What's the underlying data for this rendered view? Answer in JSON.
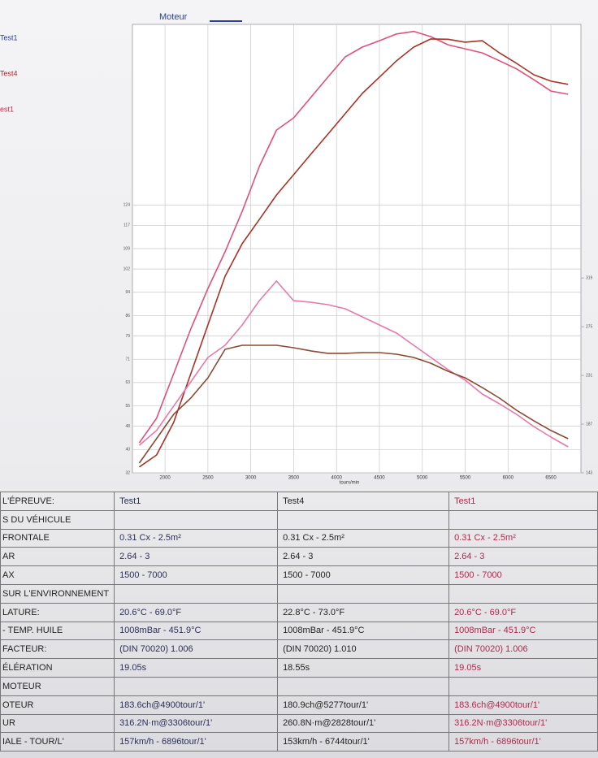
{
  "chart_data": {
    "type": "line",
    "title": "Moteur",
    "x_label": "tours/min",
    "legend": [
      {
        "text": "Test1",
        "color": "#2a3f8f"
      },
      {
        "text": "Test4",
        "color": "#b02030"
      },
      {
        "text": "est1",
        "color": "#c03050"
      }
    ],
    "x": [
      1700,
      1900,
      2100,
      2300,
      2500,
      2700,
      2900,
      3100,
      3300,
      3500,
      3700,
      3900,
      4100,
      4300,
      4500,
      4700,
      4900,
      5100,
      5300,
      5500,
      5700,
      5900,
      6100,
      6300,
      6500,
      6700
    ],
    "xlim": [
      1620,
      6850
    ],
    "xticks": [
      2000,
      2500,
      3000,
      3500,
      4000,
      4500,
      5000,
      5500,
      6000,
      6500
    ],
    "ylim": [
      32,
      186
    ],
    "yticks": [
      32,
      40,
      48,
      55,
      63,
      71,
      79,
      86,
      94,
      102,
      109,
      117,
      124
    ],
    "y2lim": [
      143,
      548
    ],
    "y2ticks": [
      143,
      187,
      231,
      275,
      319
    ],
    "grid": true,
    "series": [
      {
        "color": "#e0507a",
        "axis": "y",
        "values": [
          42.3,
          50.7,
          66.0,
          81.4,
          95.3,
          107.9,
          121.8,
          137.2,
          149.7,
          153.9,
          160.9,
          167.9,
          174.8,
          178.2,
          180.4,
          182.7,
          183.6,
          181.8,
          179.0,
          177.6,
          176.2,
          173.5,
          170.7,
          167.0,
          163.1,
          162.0
        ]
      },
      {
        "color": "#a83226",
        "axis": "y",
        "values": [
          34.0,
          38.1,
          49.3,
          66.0,
          82.8,
          99.5,
          110.7,
          119.0,
          127.4,
          134.4,
          141.4,
          148.3,
          155.3,
          162.3,
          167.9,
          173.5,
          178.2,
          181.0,
          180.9,
          179.9,
          180.4,
          176.2,
          172.6,
          168.7,
          166.5,
          165.4
        ]
      },
      {
        "color": "#e879a8",
        "axis": "y2",
        "values": [
          167.9,
          181.2,
          203.2,
          225.2,
          247.2,
          258.2,
          276.5,
          298.5,
          316.2,
          298.5,
          297.1,
          294.9,
          291.2,
          283.9,
          276.5,
          269.2,
          258.2,
          247.2,
          236.2,
          226.7,
          214.2,
          205.4,
          195.8,
          184.8,
          175.3,
          166.5
        ]
      },
      {
        "color": "#8a4a34",
        "axis": "y2",
        "values": [
          151.8,
          173.8,
          195.8,
          210.5,
          228.8,
          254.5,
          258.2,
          258.2,
          258.2,
          256.0,
          253.1,
          250.9,
          250.9,
          251.6,
          251.6,
          250.1,
          247.2,
          242.0,
          234.7,
          228.8,
          220.0,
          210.5,
          199.5,
          190.0,
          181.2,
          173.8
        ]
      }
    ]
  },
  "table": {
    "header": [
      "L'ÉPREUVE:",
      "Test1",
      "Test4",
      "Test1"
    ],
    "rows": [
      [
        "S DU VÉHICULE"
      ],
      [
        "FRONTALE",
        "0.31 Cx - 2.5m²",
        "0.31 Cx - 2.5m²",
        "0.31 Cx - 2.5m²"
      ],
      [
        "AR",
        "2.64 - 3",
        "2.64 - 3",
        "2.64 - 3"
      ],
      [
        "AX",
        "1500 - 7000",
        "1500 - 7000",
        "1500 - 7000"
      ],
      [
        "SUR L'ENVIRONNEMENT"
      ],
      [
        "LATURE:",
        "20.6°C - 69.0°F",
        "22.8°C - 73.0°F",
        "20.6°C - 69.0°F"
      ],
      [
        "- TEMP. HUILE",
        "1008mBar - 451.9°C",
        "1008mBar - 451.9°C",
        "1008mBar - 451.9°C"
      ],
      [
        "FACTEUR:",
        "(DIN 70020) 1.006",
        "(DIN 70020) 1.010",
        "(DIN 70020) 1.006"
      ],
      [
        "ÉLÉRATION",
        "19.05s",
        "18.55s",
        "19.05s"
      ],
      [
        "MOTEUR"
      ],
      [
        "OTEUR",
        "183.6ch@4900tour/1'",
        "180.9ch@5277tour/1'",
        "183.6ch@4900tour/1'"
      ],
      [
        "UR",
        "316.2N·m@3306tour/1'",
        "260.8N·m@2828tour/1'",
        "316.2N·m@3306tour/1'"
      ],
      [
        "IALE - TOUR/L'",
        "157km/h - 6896tour/1'",
        "153km/h - 6744tour/1'",
        "157km/h - 6896tour/1'"
      ]
    ]
  }
}
